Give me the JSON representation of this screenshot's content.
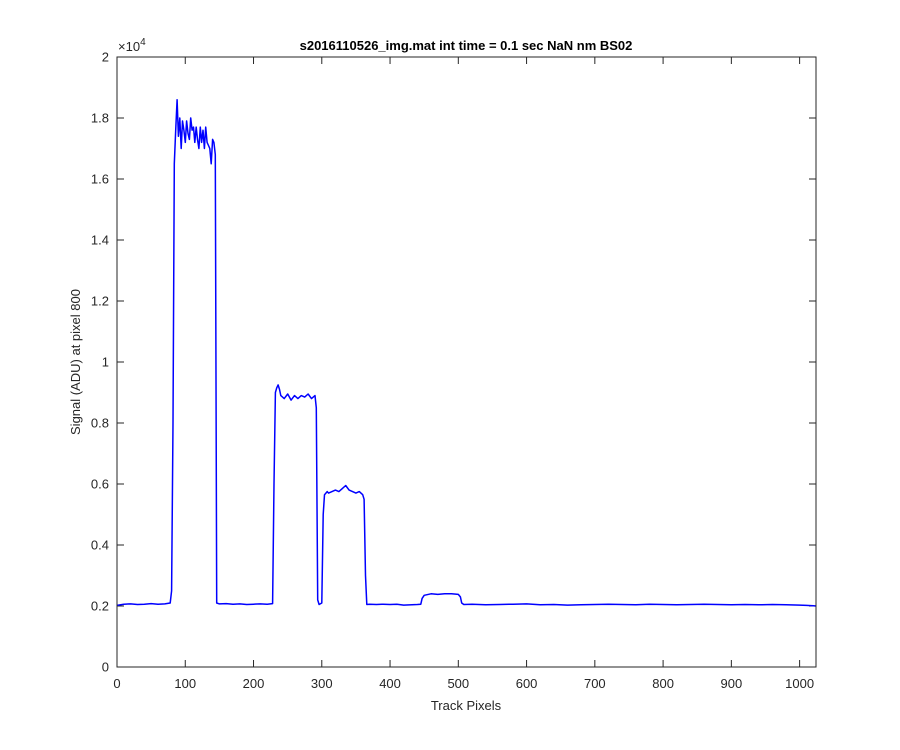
{
  "chart_data": {
    "type": "line",
    "title": "s2016110526_img.mat int time = 0.1 sec  NaN nm BS02",
    "xlabel": "Track Pixels",
    "ylabel": "Signal (ADU) at pixel 800",
    "xlim": [
      0,
      1024
    ],
    "ylim": [
      0,
      20000
    ],
    "x_ticks": [
      0,
      100,
      200,
      300,
      400,
      500,
      600,
      700,
      800,
      900,
      1000
    ],
    "x_tick_labels": [
      "0",
      "100",
      "200",
      "300",
      "400",
      "500",
      "600",
      "700",
      "800",
      "900",
      "1000"
    ],
    "y_ticks": [
      0,
      2000,
      4000,
      6000,
      8000,
      10000,
      12000,
      14000,
      16000,
      18000,
      20000
    ],
    "y_tick_labels": [
      "0",
      "0.2",
      "0.4",
      "0.6",
      "0.8",
      "1",
      "1.2",
      "1.4",
      "1.6",
      "1.8",
      "2"
    ],
    "y_exponent_label": "×10",
    "y_exponent_power": "4",
    "grid": false,
    "line_color": "#0000ff",
    "series": [
      {
        "x": [
          0,
          10,
          20,
          30,
          40,
          50,
          60,
          70,
          78,
          80,
          82,
          84,
          86,
          88,
          90,
          92,
          94,
          96,
          98,
          100,
          102,
          104,
          106,
          108,
          110,
          112,
          114,
          116,
          118,
          120,
          122,
          124,
          126,
          128,
          130,
          132,
          134,
          136,
          138,
          140,
          142,
          144,
          146,
          150,
          160,
          170,
          180,
          190,
          200,
          210,
          220,
          228,
          230,
          232,
          234,
          236,
          238,
          240,
          245,
          250,
          255,
          260,
          265,
          270,
          275,
          280,
          285,
          290,
          292,
          294,
          296,
          300,
          302,
          304,
          306,
          308,
          310,
          315,
          320,
          325,
          330,
          335,
          340,
          345,
          350,
          355,
          360,
          362,
          364,
          366,
          370,
          380,
          390,
          400,
          410,
          420,
          440,
          445,
          447,
          450,
          460,
          470,
          480,
          490,
          500,
          503,
          505,
          508,
          520,
          540,
          560,
          580,
          600,
          620,
          640,
          660,
          680,
          700,
          720,
          740,
          760,
          780,
          800,
          820,
          840,
          860,
          880,
          900,
          920,
          940,
          960,
          980,
          1000,
          1010,
          1020,
          1024
        ],
        "y": [
          2020,
          2060,
          2070,
          2050,
          2060,
          2080,
          2060,
          2070,
          2100,
          2500,
          8000,
          16500,
          17600,
          18600,
          17400,
          18000,
          17000,
          17900,
          17600,
          17200,
          17900,
          17500,
          17300,
          18000,
          17600,
          17700,
          17200,
          17700,
          17300,
          17000,
          17700,
          17200,
          17600,
          17000,
          17700,
          17200,
          17100,
          17000,
          16500,
          17300,
          17200,
          16800,
          2100,
          2070,
          2080,
          2060,
          2070,
          2050,
          2060,
          2070,
          2060,
          2080,
          6000,
          9000,
          9150,
          9250,
          9100,
          8900,
          8800,
          8950,
          8750,
          8900,
          8800,
          8900,
          8850,
          8950,
          8800,
          8900,
          8500,
          2200,
          2050,
          2100,
          5000,
          5650,
          5700,
          5750,
          5700,
          5750,
          5800,
          5750,
          5850,
          5950,
          5800,
          5750,
          5700,
          5750,
          5650,
          5500,
          3000,
          2050,
          2060,
          2050,
          2060,
          2050,
          2060,
          2030,
          2050,
          2060,
          2250,
          2350,
          2400,
          2380,
          2400,
          2400,
          2380,
          2300,
          2100,
          2050,
          2060,
          2040,
          2050,
          2060,
          2070,
          2040,
          2050,
          2030,
          2040,
          2050,
          2060,
          2050,
          2040,
          2060,
          2050,
          2040,
          2050,
          2060,
          2050,
          2040,
          2050,
          2040,
          2050,
          2040,
          2030,
          2020,
          2010,
          2000
        ]
      }
    ]
  }
}
